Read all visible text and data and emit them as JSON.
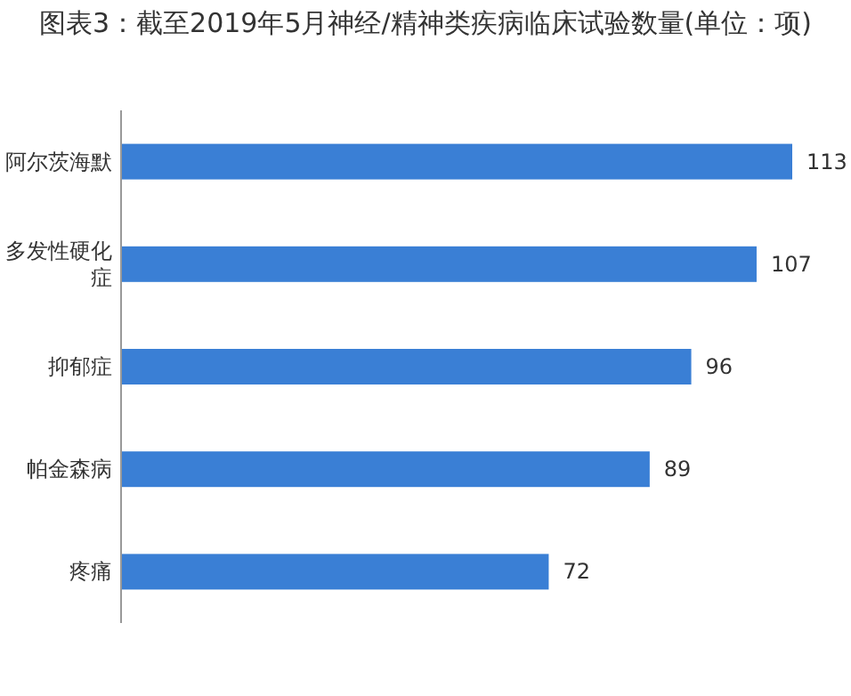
{
  "chart_data": {
    "type": "bar",
    "orientation": "horizontal",
    "title": "图表3：截至2019年5月神经/精神类疾病临床试验数量(单位：项)",
    "categories": [
      "阿尔茨海默",
      "多发性硬化症",
      "抑郁症",
      "帕金森病",
      "疼痛"
    ],
    "values": [
      113,
      107,
      96,
      89,
      72
    ],
    "color": "#3a7fd5",
    "data_labels": true
  }
}
